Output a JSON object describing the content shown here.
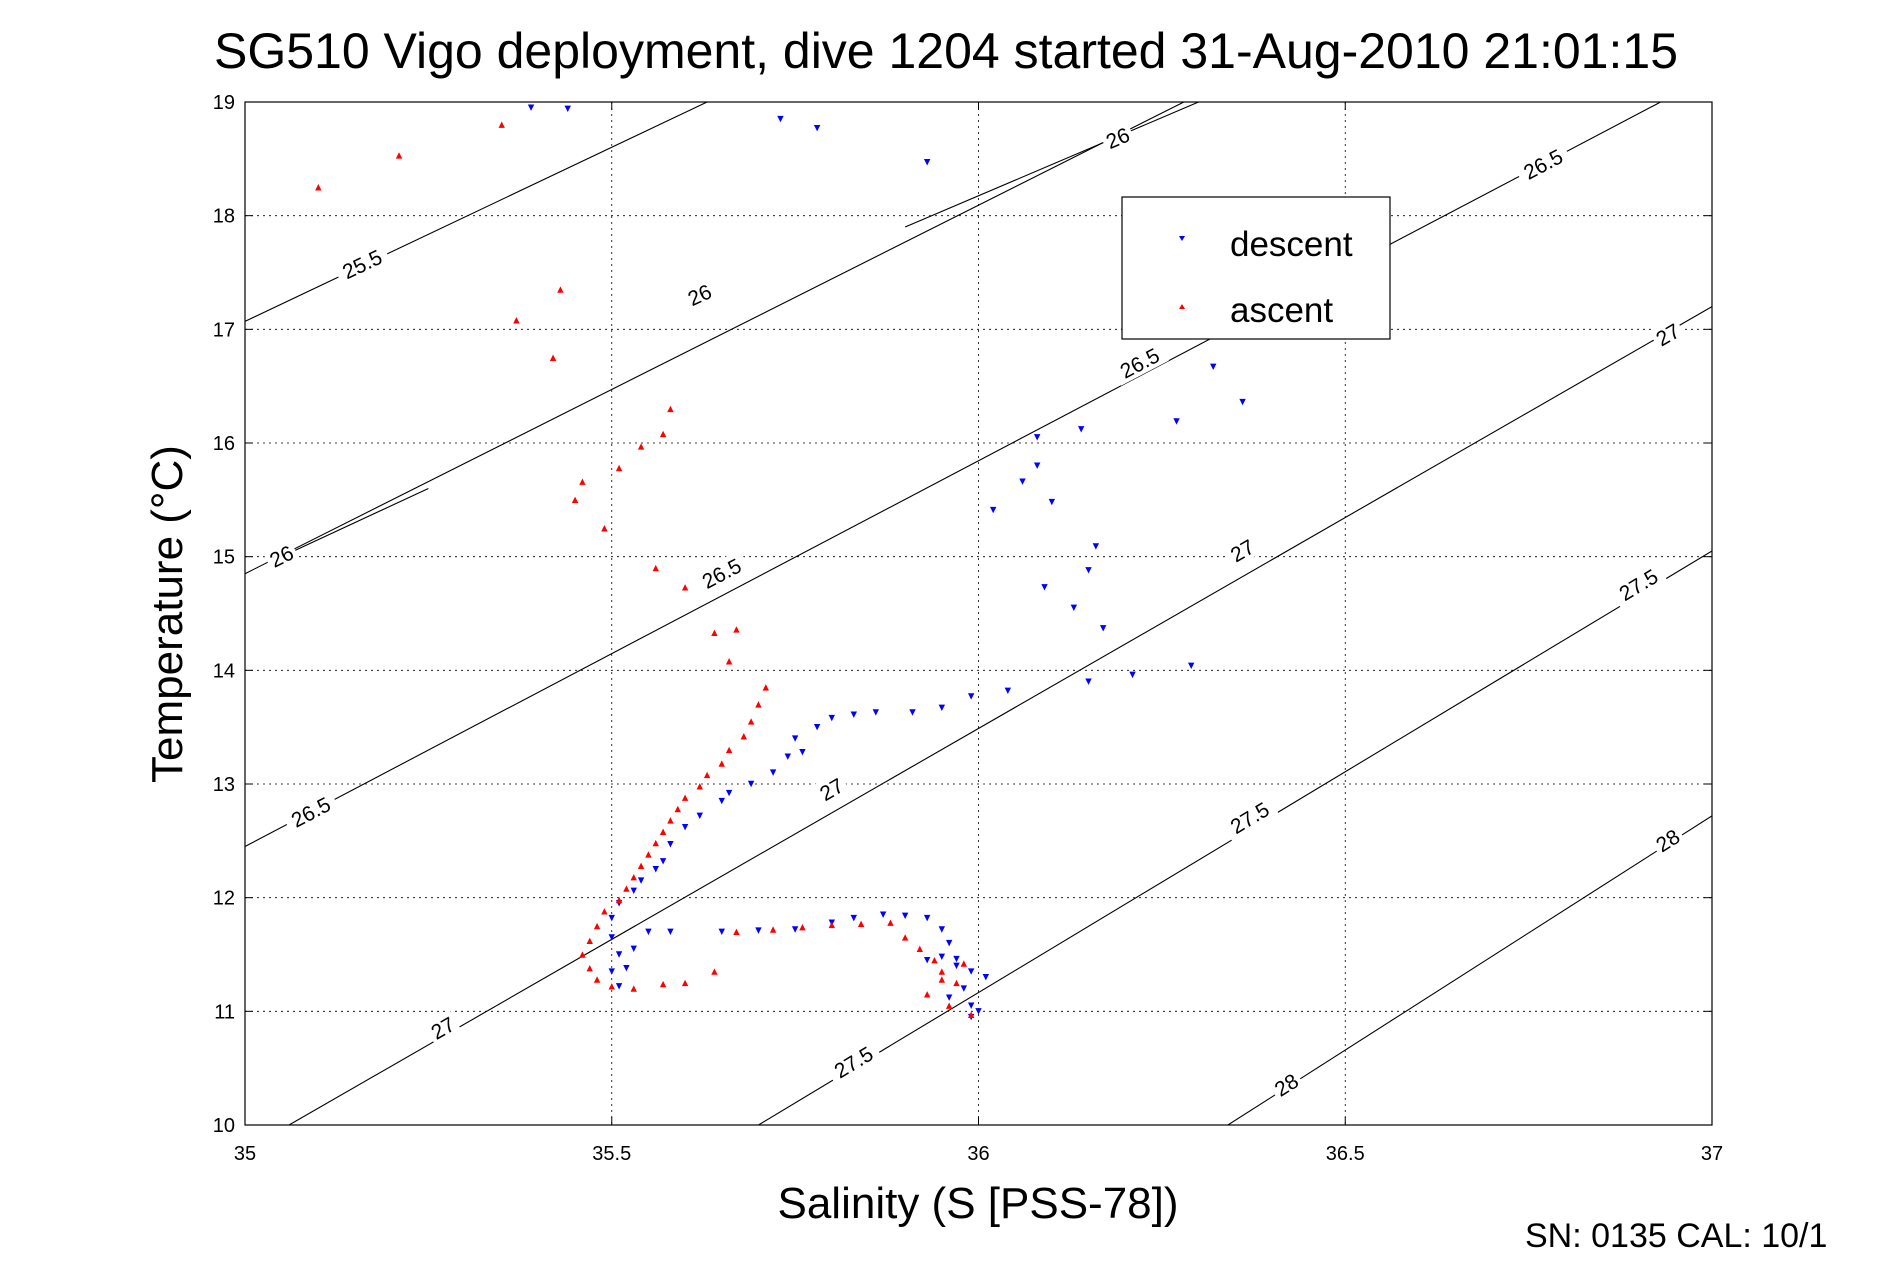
{
  "chart_data": {
    "type": "scatter",
    "title": "SG510 Vigo deployment, dive 1204 started 31-Aug-2010 21:01:15",
    "xlabel": "Salinity (S [PSS-78])",
    "ylabel": "Temperature (°C)",
    "footer": "SN: 0135  CAL: 10/1",
    "xlim": [
      35,
      37
    ],
    "ylim": [
      10,
      19
    ],
    "x_ticks": [
      "35",
      "35.5",
      "36",
      "36.5",
      "37"
    ],
    "y_ticks": [
      "10",
      "11",
      "12",
      "13",
      "14",
      "15",
      "16",
      "17",
      "18",
      "19"
    ],
    "grid": true,
    "legend_position": "top-right",
    "colors": {
      "descent": "#0000ff",
      "ascent": "#ff0000",
      "contour": "#000000"
    },
    "contours": [
      {
        "label": "25.5",
        "start": [
          35.0,
          17.07
        ],
        "end": [
          35.63,
          19.0
        ],
        "label_at": [
          35.16,
          17.57
        ]
      },
      {
        "label": "26",
        "start": [
          35.0,
          14.85
        ],
        "end": [
          36.28,
          19.0
        ],
        "label_at": [
          35.05,
          15.0
        ]
      },
      {
        "label": "26",
        "start": [
          35.05,
          15.0
        ],
        "end": [
          35.25,
          15.6
        ],
        "label_at": [
          35.62,
          17.3
        ]
      },
      {
        "label": "26",
        "start": [
          35.9,
          17.9
        ],
        "end": [
          36.3,
          19.0
        ],
        "label_at": [
          36.19,
          18.68
        ]
      },
      {
        "label": "26.5",
        "start": [
          35.0,
          12.45
        ],
        "end": [
          36.93,
          19.0
        ],
        "label_at": [
          35.65,
          14.85
        ]
      },
      {
        "label": "26.5",
        "start": [
          35.0,
          12.45
        ],
        "end": [
          36.93,
          19.0
        ],
        "label_at": [
          35.09,
          12.75
        ]
      },
      {
        "label": "26.5",
        "start": [
          35.0,
          12.45
        ],
        "end": [
          36.93,
          19.0
        ],
        "label_at": [
          36.22,
          16.7
        ]
      },
      {
        "label": "26.5",
        "start": [
          35.0,
          12.45
        ],
        "end": [
          36.93,
          19.0
        ],
        "label_at": [
          36.77,
          18.45
        ]
      },
      {
        "label": "27",
        "start": [
          35.06,
          10.0
        ],
        "end": [
          37.0,
          17.2
        ],
        "label_at": [
          35.27,
          10.85
        ]
      },
      {
        "label": "27",
        "start": [
          35.06,
          10.0
        ],
        "end": [
          37.0,
          17.2
        ],
        "label_at": [
          35.8,
          12.95
        ]
      },
      {
        "label": "27",
        "start": [
          35.06,
          10.0
        ],
        "end": [
          37.0,
          17.2
        ],
        "label_at": [
          36.36,
          15.05
        ]
      },
      {
        "label": "27",
        "start": [
          35.06,
          10.0
        ],
        "end": [
          37.0,
          17.2
        ],
        "label_at": [
          36.94,
          16.95
        ]
      },
      {
        "label": "27.5",
        "start": [
          35.7,
          10.0
        ],
        "end": [
          37.0,
          15.05
        ],
        "label_at": [
          35.83,
          10.55
        ]
      },
      {
        "label": "27.5",
        "start": [
          35.7,
          10.0
        ],
        "end": [
          37.0,
          15.05
        ],
        "label_at": [
          36.37,
          12.7
        ]
      },
      {
        "label": "27.5",
        "start": [
          35.7,
          10.0
        ],
        "end": [
          37.0,
          15.05
        ],
        "label_at": [
          36.9,
          14.75
        ]
      },
      {
        "label": "28",
        "start": [
          36.34,
          10.0
        ],
        "end": [
          37.0,
          12.72
        ],
        "label_at": [
          36.42,
          10.35
        ]
      },
      {
        "label": "28",
        "start": [
          36.34,
          10.0
        ],
        "end": [
          37.0,
          12.72
        ],
        "label_at": [
          36.94,
          12.5
        ]
      }
    ],
    "series": [
      {
        "name": "descent",
        "marker": "triangle-down",
        "points": [
          [
            35.39,
            18.95
          ],
          [
            35.44,
            18.94
          ],
          [
            35.73,
            18.85
          ],
          [
            35.78,
            18.77
          ],
          [
            35.93,
            18.47
          ],
          [
            36.32,
            16.67
          ],
          [
            36.36,
            16.36
          ],
          [
            36.27,
            16.19
          ],
          [
            36.14,
            16.12
          ],
          [
            36.08,
            16.05
          ],
          [
            36.08,
            15.8
          ],
          [
            36.06,
            15.66
          ],
          [
            36.1,
            15.48
          ],
          [
            36.02,
            15.41
          ],
          [
            36.16,
            15.09
          ],
          [
            36.15,
            14.88
          ],
          [
            36.09,
            14.73
          ],
          [
            36.13,
            14.55
          ],
          [
            36.17,
            14.37
          ],
          [
            36.29,
            14.04
          ],
          [
            36.21,
            13.96
          ],
          [
            36.15,
            13.9
          ],
          [
            36.04,
            13.82
          ],
          [
            35.99,
            13.77
          ],
          [
            35.95,
            13.67
          ],
          [
            35.91,
            13.63
          ],
          [
            35.86,
            13.63
          ],
          [
            35.83,
            13.61
          ],
          [
            35.8,
            13.58
          ],
          [
            35.78,
            13.5
          ],
          [
            35.75,
            13.4
          ],
          [
            35.76,
            13.28
          ],
          [
            35.74,
            13.24
          ],
          [
            35.72,
            13.1
          ],
          [
            35.69,
            13.0
          ],
          [
            35.66,
            12.92
          ],
          [
            35.65,
            12.85
          ],
          [
            35.62,
            12.72
          ],
          [
            35.6,
            12.62
          ],
          [
            35.58,
            12.47
          ],
          [
            35.57,
            12.32
          ],
          [
            35.56,
            12.25
          ],
          [
            35.54,
            12.15
          ],
          [
            35.53,
            12.06
          ],
          [
            35.51,
            11.95
          ],
          [
            35.5,
            11.82
          ],
          [
            35.5,
            11.65
          ],
          [
            35.51,
            11.5
          ],
          [
            35.5,
            11.35
          ],
          [
            35.51,
            11.22
          ],
          [
            35.52,
            11.38
          ],
          [
            35.53,
            11.55
          ],
          [
            35.55,
            11.7
          ],
          [
            35.58,
            11.7
          ],
          [
            35.65,
            11.7
          ],
          [
            35.7,
            11.71
          ],
          [
            35.75,
            11.72
          ],
          [
            35.8,
            11.78
          ],
          [
            35.83,
            11.82
          ],
          [
            35.87,
            11.85
          ],
          [
            35.9,
            11.84
          ],
          [
            35.93,
            11.82
          ],
          [
            35.95,
            11.72
          ],
          [
            35.96,
            11.6
          ],
          [
            35.95,
            11.48
          ],
          [
            35.97,
            11.4
          ],
          [
            35.99,
            11.35
          ],
          [
            36.01,
            11.3
          ],
          [
            35.98,
            11.2
          ],
          [
            35.96,
            11.12
          ],
          [
            35.99,
            11.05
          ],
          [
            36.0,
            11.0
          ],
          [
            35.99,
            10.95
          ],
          [
            35.93,
            11.45
          ],
          [
            35.97,
            11.46
          ]
        ]
      },
      {
        "name": "ascent",
        "marker": "triangle-up",
        "points": [
          [
            35.1,
            18.25
          ],
          [
            35.21,
            18.53
          ],
          [
            35.35,
            18.8
          ],
          [
            35.37,
            17.08
          ],
          [
            35.43,
            17.35
          ],
          [
            35.42,
            16.75
          ],
          [
            35.58,
            16.3
          ],
          [
            35.57,
            16.08
          ],
          [
            35.54,
            15.97
          ],
          [
            35.51,
            15.78
          ],
          [
            35.46,
            15.66
          ],
          [
            35.45,
            15.5
          ],
          [
            35.49,
            15.25
          ],
          [
            35.56,
            14.9
          ],
          [
            35.6,
            14.73
          ],
          [
            35.64,
            14.33
          ],
          [
            35.67,
            14.36
          ],
          [
            35.66,
            14.08
          ],
          [
            35.71,
            13.85
          ],
          [
            35.7,
            13.7
          ],
          [
            35.69,
            13.55
          ],
          [
            35.68,
            13.42
          ],
          [
            35.66,
            13.3
          ],
          [
            35.65,
            13.18
          ],
          [
            35.63,
            13.08
          ],
          [
            35.62,
            12.98
          ],
          [
            35.6,
            12.88
          ],
          [
            35.59,
            12.78
          ],
          [
            35.58,
            12.68
          ],
          [
            35.57,
            12.58
          ],
          [
            35.56,
            12.48
          ],
          [
            35.55,
            12.38
          ],
          [
            35.54,
            12.28
          ],
          [
            35.53,
            12.18
          ],
          [
            35.52,
            12.08
          ],
          [
            35.51,
            11.98
          ],
          [
            35.49,
            11.88
          ],
          [
            35.48,
            11.75
          ],
          [
            35.47,
            11.62
          ],
          [
            35.46,
            11.5
          ],
          [
            35.47,
            11.38
          ],
          [
            35.48,
            11.28
          ],
          [
            35.5,
            11.22
          ],
          [
            35.53,
            11.2
          ],
          [
            35.57,
            11.24
          ],
          [
            35.6,
            11.25
          ],
          [
            35.64,
            11.35
          ],
          [
            35.67,
            11.7
          ],
          [
            35.72,
            11.72
          ],
          [
            35.76,
            11.74
          ],
          [
            35.8,
            11.76
          ],
          [
            35.84,
            11.77
          ],
          [
            35.88,
            11.78
          ],
          [
            35.9,
            11.65
          ],
          [
            35.92,
            11.55
          ],
          [
            35.94,
            11.45
          ],
          [
            35.95,
            11.35
          ],
          [
            35.97,
            11.25
          ],
          [
            35.93,
            11.15
          ],
          [
            35.96,
            11.05
          ],
          [
            35.99,
            10.97
          ],
          [
            35.98,
            11.42
          ],
          [
            35.95,
            11.28
          ]
        ]
      }
    ]
  }
}
